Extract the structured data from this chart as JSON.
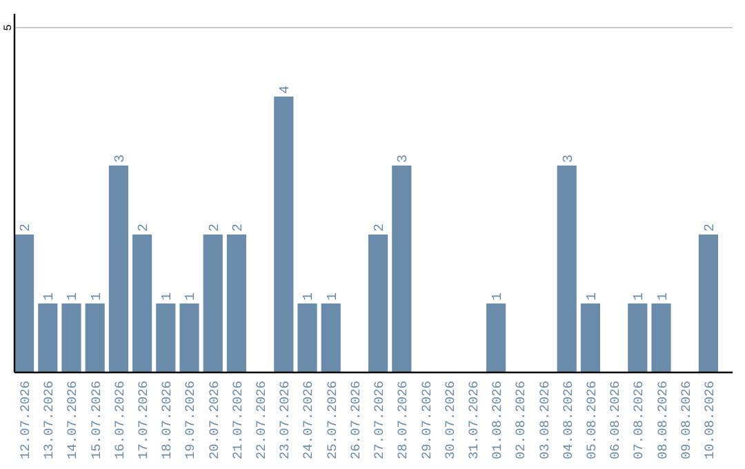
{
  "chart_data": {
    "type": "bar",
    "categories": [
      "12.07.2026",
      "13.07.2026",
      "14.07.2026",
      "15.07.2026",
      "16.07.2026",
      "17.07.2026",
      "18.07.2026",
      "19.07.2026",
      "20.07.2026",
      "21.07.2026",
      "22.07.2026",
      "23.07.2026",
      "24.07.2026",
      "25.07.2026",
      "26.07.2026",
      "27.07.2026",
      "28.07.2026",
      "29.07.2026",
      "30.07.2026",
      "31.07.2026",
      "01.08.2026",
      "02.08.2026",
      "03.08.2026",
      "04.08.2026",
      "05.08.2026",
      "06.08.2026",
      "07.08.2026",
      "08.08.2026",
      "09.08.2026",
      "10.08.2026"
    ],
    "values": [
      2,
      1,
      1,
      1,
      3,
      2,
      1,
      1,
      2,
      2,
      null,
      4,
      1,
      1,
      null,
      2,
      3,
      null,
      null,
      null,
      1,
      null,
      null,
      3,
      1,
      null,
      1,
      1,
      null,
      2
    ],
    "color": "#6a8caa",
    "ylim": [
      0,
      5.2
    ],
    "yticks": [
      5
    ],
    "grid": "y",
    "data_labels": true
  }
}
